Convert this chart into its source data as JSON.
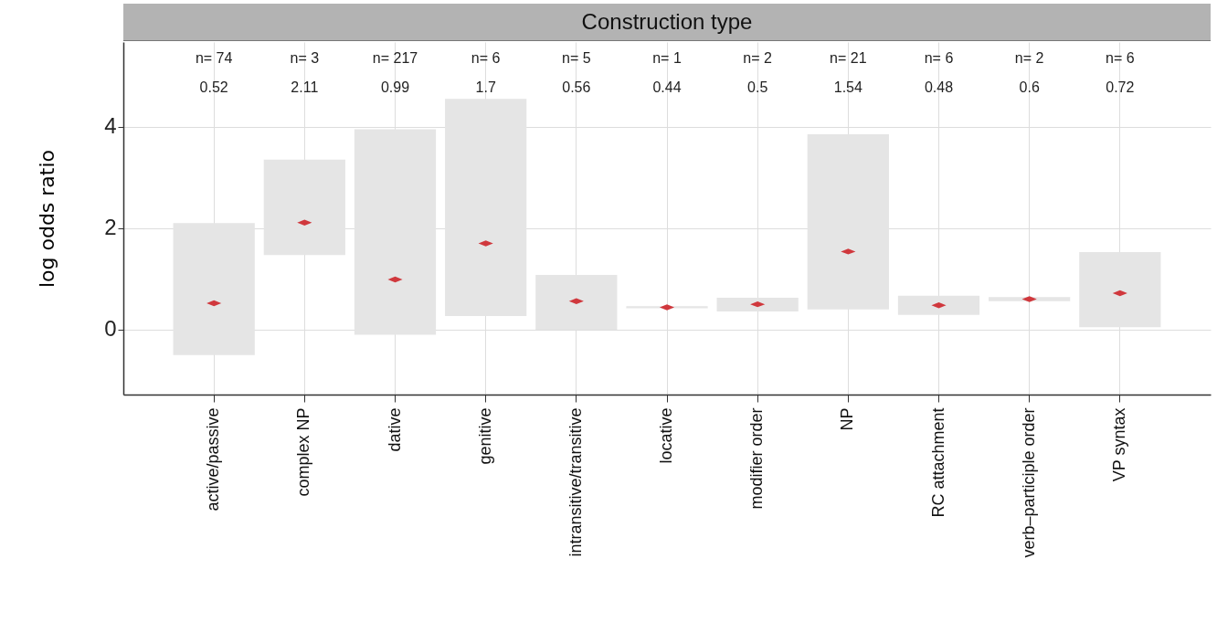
{
  "chart_data": {
    "type": "bar",
    "title": "Construction type",
    "ylabel": "log odds ratio",
    "categories": [
      "active/passive",
      "complex NP",
      "dative",
      "genitive",
      "intransitive/transitive",
      "locative",
      "modifier order",
      "NP",
      "RC attachment",
      "verb–participle order",
      "VP syntax"
    ],
    "series": [
      {
        "color": "#e5e5e5",
        "base": [
          -0.5,
          1.47,
          -0.1,
          0.27,
          0.0,
          0.42,
          0.36,
          0.4,
          0.29,
          0.56,
          0.05
        ],
        "values": [
          2.6,
          1.88,
          4.05,
          4.28,
          1.08,
          0.04,
          0.27,
          3.45,
          0.38,
          0.08,
          1.48
        ]
      },
      {
        "type": "scatter",
        "color": "#d0383d",
        "values": [
          0.52,
          2.11,
          0.99,
          1.7,
          0.56,
          0.44,
          0.5,
          1.54,
          0.48,
          0.6,
          0.72
        ]
      }
    ],
    "annotations": [
      "n= 74",
      "0.52",
      "n= 3",
      "2.11",
      "n= 217",
      "0.99",
      "n= 6",
      "1.7",
      "n= 5",
      "0.56",
      "n= 1",
      "0.44",
      "n= 2",
      "0.5",
      "n= 21",
      "1.54",
      "n= 6",
      "0.48",
      "n= 2",
      "0.6",
      "n= 6",
      "0.72"
    ],
    "ylim": [
      -1.28,
      5.67
    ],
    "yticks": [
      0,
      2,
      4
    ],
    "grid": true
  }
}
